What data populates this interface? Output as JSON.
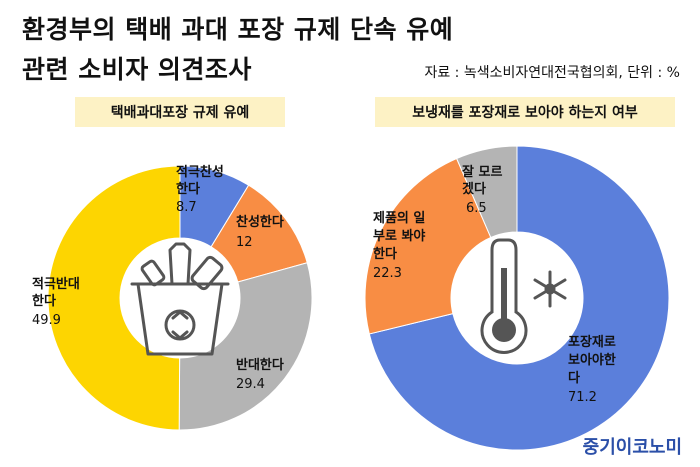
{
  "title_line1": "환경부의 택배 과대 포장 규제 단속 유예",
  "title_line2": "관련 소비자 의견조사",
  "source": "자료 : 녹색소비자연대전국협의회, 단위 : %",
  "brand": "중기이코노미",
  "colors": {
    "yellow": "#fdd501",
    "blue": "#5b7fdb",
    "orange": "#f88d44",
    "gray": "#b4b4b4"
  },
  "chart_data": [
    {
      "type": "pie",
      "title": "택배과대포장 규제 유예",
      "slices": [
        {
          "label": "적극찬성한다",
          "value": 8.7,
          "color": "#5b7fdb"
        },
        {
          "label": "찬성한다",
          "value": 12,
          "color": "#f88d44"
        },
        {
          "label": "반대한다",
          "value": 29.4,
          "color": "#b4b4b4"
        },
        {
          "label": "적극반대한다",
          "value": 49.9,
          "color": "#fdd501"
        }
      ]
    },
    {
      "type": "pie",
      "title": "보냉재를 포장재로 보아야 하는지 여부",
      "slices": [
        {
          "label": "포장재로 보아야한다",
          "value": 71.2,
          "color": "#5b7fdb"
        },
        {
          "label": "제품의 일부로 봐야한다",
          "value": 22.3,
          "color": "#f88d44"
        },
        {
          "label": "잘 모르겠다",
          "value": 6.5,
          "color": "#b4b4b4"
        }
      ]
    }
  ]
}
